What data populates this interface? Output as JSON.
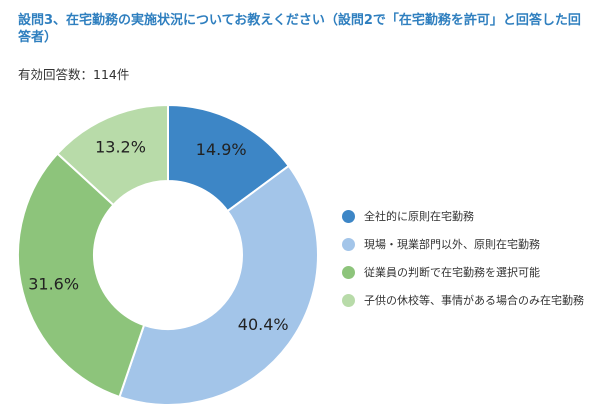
{
  "header": {
    "title": "設問3、在宅勤務の実施状況についてお教えください（設問2で「在宅勤務を許可」と回答した回答者）",
    "respondents": "有効回答数：114件"
  },
  "chart_data": {
    "type": "pie",
    "donut": true,
    "categories": [
      "全社的に原則在宅勤務",
      "現場・現業部門以外、原則在宅勤務",
      "従業員の判断で在宅勤務を選択可能",
      "子供の休校等、事情がある場合のみ在宅勤務"
    ],
    "values": [
      14.9,
      40.4,
      31.6,
      13.2
    ],
    "labels": [
      "14.9%",
      "40.4%",
      "31.6%",
      "13.2%"
    ],
    "colors": [
      "#3d86c6",
      "#a3c5e9",
      "#8dc47b",
      "#b8dba9"
    ],
    "start": "12 o'clock",
    "direction": "clockwise",
    "legend_position": "right"
  }
}
